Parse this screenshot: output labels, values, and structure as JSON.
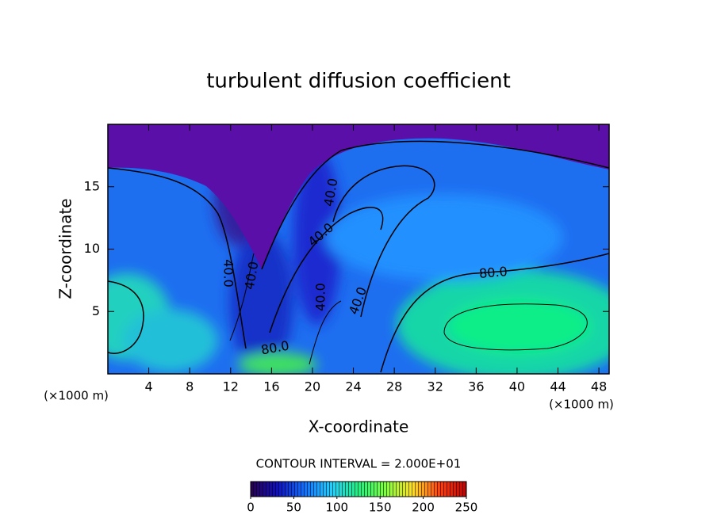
{
  "chart_data": {
    "type": "contour",
    "title": "turbulent diffusion coefficient",
    "x_label": "X-coordinate",
    "y_label": "Z-coordinate",
    "x_unit": "(×1000 m)",
    "x_unit_right": "(×1000 m)",
    "contour_interval": "CONTOUR INTERVAL = 2.000E+01",
    "xlim": [
      0,
      49
    ],
    "xticks": [
      4,
      8,
      12,
      16,
      20,
      24,
      28,
      32,
      36,
      40,
      44,
      48
    ],
    "ylim": [
      0,
      20
    ],
    "yticks": [
      5,
      10,
      15
    ],
    "contour_labels": [
      "40.0",
      "40.0",
      "40.0",
      "40.0",
      "40.0",
      "40.0",
      "80.0",
      "80.0"
    ],
    "colorbar": {
      "range": [
        0,
        250
      ],
      "ticks": [
        0,
        50,
        100,
        150,
        200,
        250
      ],
      "colors": [
        "#2a0050",
        "#1010c0",
        "#1070ff",
        "#20d0ff",
        "#20f080",
        "#80ff40",
        "#ffe020",
        "#ff4010",
        "#c00000"
      ]
    }
  }
}
